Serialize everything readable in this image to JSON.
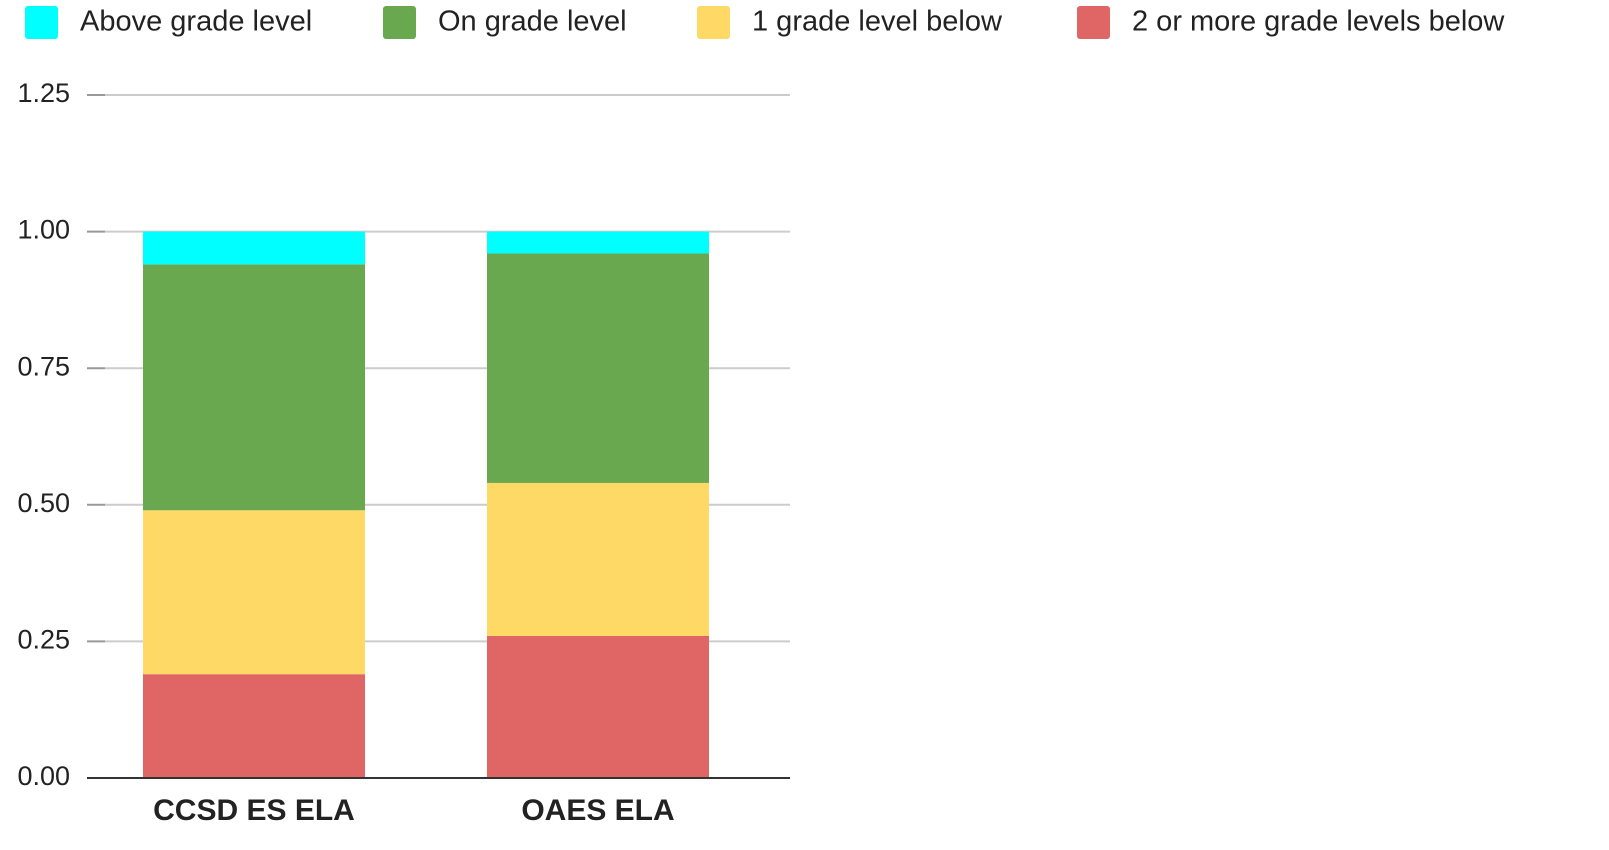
{
  "chart_data": {
    "type": "stacked_bar",
    "categories": [
      "CCSD ES ELA",
      "OAES ELA"
    ],
    "series": [
      {
        "name": "Above grade level",
        "color": "#00ffff",
        "values": [
          0.06,
          0.04
        ]
      },
      {
        "name": "On grade level",
        "color": "#6aa84f",
        "values": [
          0.45,
          0.42
        ]
      },
      {
        "name": "1 grade level below",
        "color": "#ffd966",
        "values": [
          0.3,
          0.28
        ]
      },
      {
        "name": "2 or more grade levels below",
        "color": "#e06666",
        "values": [
          0.19,
          0.26
        ]
      }
    ],
    "ylim": [
      0,
      1.25
    ],
    "yticks": [
      {
        "value": 0,
        "label": "0.00"
      },
      0.25,
      {
        "value": 0.5,
        "label": "0.50"
      },
      0.75,
      {
        "value": 1,
        "label": "1.00"
      },
      1.25
    ],
    "grid": true,
    "legend": "top"
  }
}
